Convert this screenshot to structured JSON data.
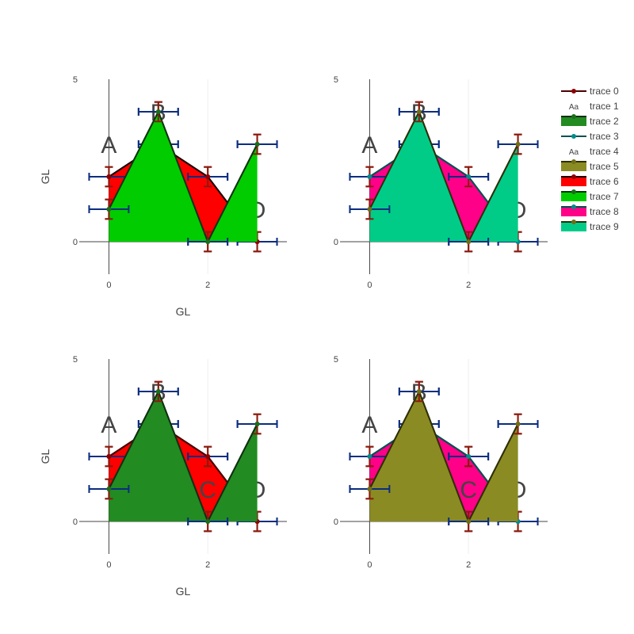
{
  "chart_data": {
    "type": "area",
    "axis_title": "GL",
    "x_ticks": [
      0,
      2
    ],
    "y_ticks": [
      0,
      5
    ],
    "xlim": [
      -0.6,
      3.6
    ],
    "ylim": [
      -1,
      5
    ],
    "grid": true,
    "legend_placement": "top-right",
    "error_bars": {
      "y_error": 0.3,
      "x_error": 0.4,
      "y_color": "#8b1a0e",
      "x_color": "#0b2d7f"
    },
    "series": [
      {
        "name": "trace 0",
        "kind": "line",
        "x": [
          0,
          1,
          2,
          3
        ],
        "y": [
          2,
          3,
          2,
          0
        ],
        "line_color": "#4b0000",
        "marker_color": "#8b0000"
      },
      {
        "name": "trace 1",
        "kind": "text",
        "x": [
          0,
          1,
          2,
          3
        ],
        "y": [
          3,
          4,
          1,
          1
        ],
        "text": [
          "A",
          "B",
          "C",
          "D"
        ]
      },
      {
        "name": "trace 2",
        "kind": "area",
        "x": [
          0,
          1,
          2,
          3
        ],
        "y": [
          1,
          4,
          0,
          3
        ],
        "fill_color": "#228b22",
        "line_color": "#103010",
        "marker_color": "#1b6e1b"
      },
      {
        "name": "trace 3",
        "kind": "line",
        "x": [
          0,
          1,
          2,
          3
        ],
        "y": [
          2,
          3,
          2,
          0
        ],
        "line_color": "#005050",
        "marker_color": "#008b8b"
      },
      {
        "name": "trace 4",
        "kind": "text",
        "x": [
          0,
          1,
          2,
          3
        ],
        "y": [
          3,
          4,
          1,
          1
        ],
        "text": [
          "A",
          "B",
          "C",
          "D"
        ]
      },
      {
        "name": "trace 5",
        "kind": "area",
        "x": [
          0,
          1,
          2,
          3
        ],
        "y": [
          1,
          4,
          0,
          3
        ],
        "fill_color": "#8b8b23",
        "line_color": "#2e2e08",
        "marker_color": "#6e6e18"
      },
      {
        "name": "trace 6",
        "kind": "area",
        "x": [
          0,
          1,
          2,
          3
        ],
        "y": [
          2,
          3,
          2,
          0
        ],
        "fill_color": "#ff0000",
        "line_color": "#1a0000",
        "marker_color": "#8b0000"
      },
      {
        "name": "trace 7",
        "kind": "area",
        "x": [
          0,
          1,
          2,
          3
        ],
        "y": [
          1,
          4,
          0,
          3
        ],
        "fill_color": "#00cc00",
        "line_color": "#113311",
        "marker_color": "#1b6e1b"
      },
      {
        "name": "trace 8",
        "kind": "area",
        "x": [
          0,
          1,
          2,
          3
        ],
        "y": [
          2,
          3,
          2,
          0
        ],
        "fill_color": "#ff0088",
        "line_color": "#005050",
        "marker_color": "#008b8b"
      },
      {
        "name": "trace 9",
        "kind": "area",
        "x": [
          0,
          1,
          2,
          3
        ],
        "y": [
          1,
          4,
          0,
          3
        ],
        "fill_color": "#00cc88",
        "line_color": "#2e2e08",
        "marker_color": "#6e6e18"
      }
    ],
    "subplots": [
      {
        "name": "top-left",
        "traces": [
          0,
          1,
          2,
          6,
          7
        ],
        "x_title": true,
        "y_title": true
      },
      {
        "name": "top-right",
        "traces": [
          3,
          4,
          5,
          8,
          9
        ],
        "x_title": false,
        "y_title": false
      },
      {
        "name": "bottom-left",
        "traces": [
          6,
          7,
          0,
          1,
          2
        ],
        "x_title": true,
        "y_title": true
      },
      {
        "name": "bottom-right",
        "traces": [
          8,
          9,
          3,
          4,
          5
        ],
        "x_title": false,
        "y_title": false
      }
    ]
  }
}
